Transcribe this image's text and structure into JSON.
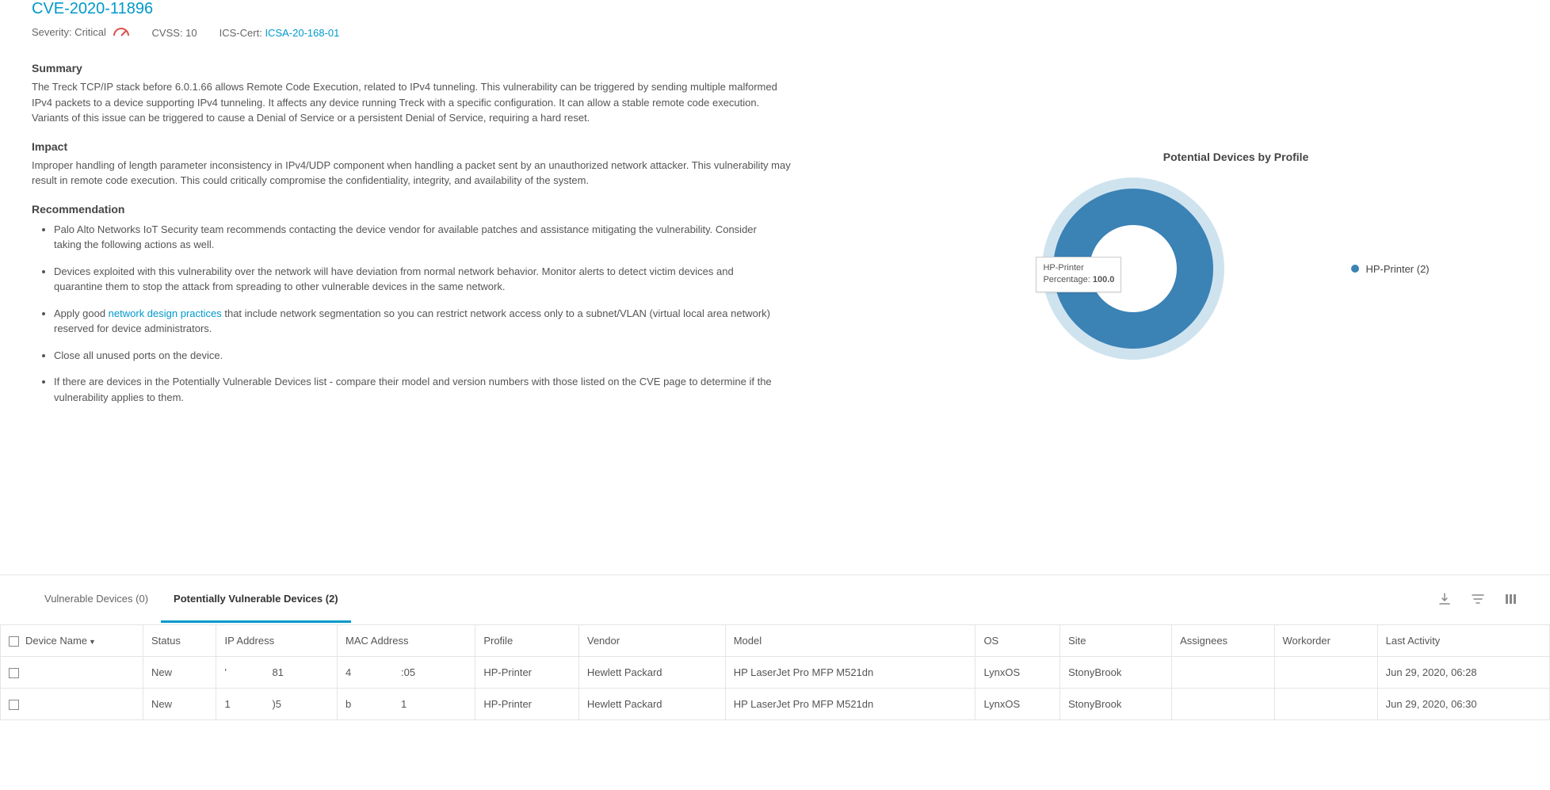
{
  "header": {
    "cve_id": "CVE-2020-11896",
    "severity_label": "Severity: Critical",
    "cvss_label": "CVSS: 10",
    "icscert_prefix": "ICS-Cert:",
    "icscert_id": "ICSA-20-168-01"
  },
  "sections": {
    "summary_heading": "Summary",
    "summary_text": "The Treck TCP/IP stack before 6.0.1.66 allows Remote Code Execution, related to IPv4 tunneling. This vulnerability can be triggered by sending multiple malformed IPv4 packets to a device supporting IPv4 tunneling. It affects any device running Treck with a specific configuration. It can allow a stable remote code execution. Variants of this issue can be triggered to cause a Denial of Service or a persistent Denial of Service, requiring a hard reset.",
    "impact_heading": "Impact",
    "impact_text": "Improper handling of length parameter inconsistency in IPv4/UDP component when handling a packet sent by an unauthorized network attacker. This vulnerability may result in remote code execution. This could critically compromise the confidentiality, integrity, and availability of the system.",
    "rec_heading": "Recommendation",
    "rec_items": [
      "Palo Alto Networks IoT Security team recommends contacting the device vendor for available patches and assistance mitigating the vulnerability. Consider taking the following actions as well.",
      "Devices exploited with this vulnerability over the network will have deviation from normal network behavior. Monitor alerts to detect victim devices and quarantine them to stop the attack from spreading to other vulnerable devices in the same network.",
      "Apply good network design practices that include network segmentation so you can restrict network access only to a subnet/VLAN (virtual local area network) reserved for device administrators.",
      "Close all unused ports on the device.",
      "If there are devices in the Potentially Vulnerable Devices list - compare their model and version numbers with those listed on the CVE page to determine if the vulnerability applies to them."
    ],
    "network_link_text": "network design practices"
  },
  "chart": {
    "title": "Potential Devices by Profile",
    "type": "donut",
    "slices": [
      {
        "label": "HP-Printer",
        "count": 2,
        "percentage": 100.0,
        "color": "#3b82b5"
      }
    ],
    "outer_color": "#cfe3ef",
    "background": "#ffffff",
    "tooltip_label": "HP-Printer",
    "tooltip_pct_prefix": "Percentage:",
    "tooltip_pct": "100.0",
    "legend_label": "HP-Printer (2)"
  },
  "tabs": {
    "vuln_label": "Vulnerable Devices (0)",
    "pvuln_label": "Potentially Vulnerable Devices (2)"
  },
  "table": {
    "columns": [
      "Device Name",
      "Status",
      "IP Address",
      "MAC Address",
      "Profile",
      "Vendor",
      "Model",
      "OS",
      "Site",
      "Assignees",
      "Workorder",
      "Last Activity"
    ],
    "rows": [
      {
        "device": "",
        "status": "New",
        "ip_a": "'",
        "ip_b": "81",
        "mac_a": "4",
        "mac_b": ":05",
        "profile": "HP-Printer",
        "vendor": "Hewlett Packard",
        "model": "HP LaserJet Pro MFP M521dn",
        "os": "LynxOS",
        "site": "StonyBrook",
        "assignees": "",
        "workorder": "",
        "last": "Jun 29, 2020, 06:28"
      },
      {
        "device": "",
        "status": "New",
        "ip_a": "1",
        "ip_b": ")5",
        "mac_a": "b",
        "mac_b": "1",
        "profile": "HP-Printer",
        "vendor": "Hewlett Packard",
        "model": "HP LaserJet Pro MFP M521dn",
        "os": "LynxOS",
        "site": "StonyBrook",
        "assignees": "",
        "workorder": "",
        "last": "Jun 29, 2020, 06:30"
      }
    ]
  },
  "colors": {
    "link": "#0099cb",
    "severity_arc": "#d9534f"
  }
}
